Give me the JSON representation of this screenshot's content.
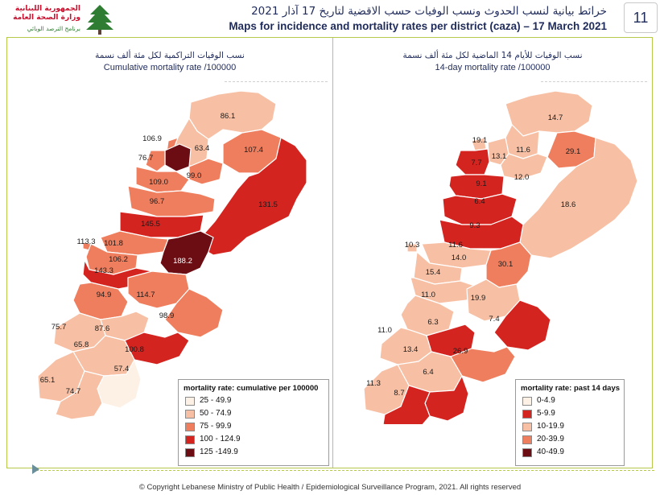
{
  "header": {
    "logo_line1": "الجمهورية اللبنانية",
    "logo_line2": "وزارة الصحة العامة",
    "logo_line3": "برنامج الترصد الوبائي",
    "title_ar": "خرائط بيانية لنسب الحدوث ونسب الوفيات حسب الاقضية لتاريخ 17 آذار 2021",
    "title_en": "Maps for incidence and mortality rates per district (caza) – 17 March 2021",
    "page_number": "11"
  },
  "left_panel": {
    "title_ar": "نسب الوفيات التراكمية لكل مئة ألف نسمة",
    "title_en": "Cumulative mortality rate /100000",
    "map_labels": [
      "86.1",
      "106.9",
      "63.4",
      "76.7",
      "99.0",
      "107.4",
      "109.0",
      "96.7",
      "131.5",
      "145.5",
      "113.3",
      "101.8",
      "106.2",
      "188.2",
      "143.3",
      "94.9",
      "114.7",
      "98.9",
      "75.7",
      "87.6",
      "65.8",
      "100.8",
      "57.4",
      "65.1",
      "74.7"
    ],
    "legend": {
      "title": "mortality rate: cumulative per 100000",
      "items": [
        {
          "label": "25 - 49.9",
          "color": "#fdf1e6"
        },
        {
          "label": "50 - 74.9",
          "color": "#f7c0a4"
        },
        {
          "label": "75 - 99.9",
          "color": "#ef7e5e"
        },
        {
          "label": "100 - 124.9",
          "color": "#d42420"
        },
        {
          "label": "125 -149.9",
          "color": "#6b0d13"
        }
      ]
    }
  },
  "right_panel": {
    "title_ar": "نسب الوفيات للأيام 14 الماضية لكل مئة ألف نسمة",
    "title_en": "14-day mortality rate /100000",
    "map_labels": [
      "14.7",
      "19.1",
      "11.6",
      "13.1",
      "7.7",
      "29.1",
      "12.0",
      "9.1",
      "6.4",
      "18.6",
      "9.3",
      "10.3",
      "11.6",
      "14.0",
      "30.1",
      "15.4",
      "11.0",
      "19.9",
      "7.4",
      "11.0",
      "6.3",
      "13.4",
      "26.9",
      "6.4",
      "11.3",
      "8.7"
    ],
    "legend": {
      "title": "mortality rate: past 14 days",
      "items": [
        {
          "label": "0-4.9",
          "color": "#fdf1e6"
        },
        {
          "label": "5-9.9",
          "color": "#d42420"
        },
        {
          "label": "10-19.9",
          "color": "#f7c0a4"
        },
        {
          "label": "20-39.9",
          "color": "#ef7e5e"
        },
        {
          "label": "40-49.9",
          "color": "#6b0d13"
        }
      ]
    }
  },
  "footer": "© Copyright Lebanese Ministry of Public Health / Epidemiological Surveillance Program, 2021. All rights reserved"
}
